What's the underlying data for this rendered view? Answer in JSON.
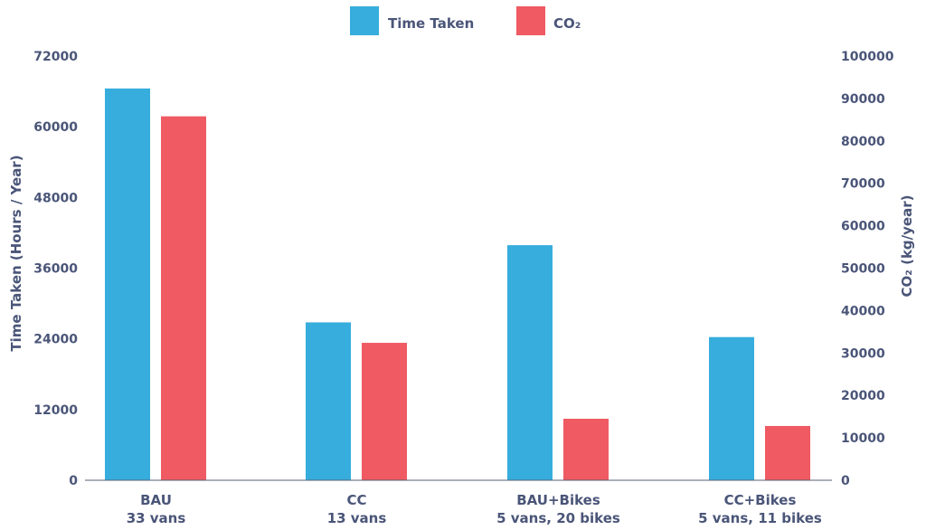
{
  "chart_data": {
    "type": "bar",
    "categories": [
      {
        "line1": "BAU",
        "line2": "33 vans"
      },
      {
        "line1": "CC",
        "line2": "13 vans"
      },
      {
        "line1": "BAU+Bikes",
        "line2": "5 vans, 20 bikes"
      },
      {
        "line1": "CC+Bikes",
        "line2": "5 vans, 11 bikes"
      }
    ],
    "series": [
      {
        "name": "Time Taken",
        "axis": "left",
        "color": "#36ADDC",
        "values": [
          66500,
          26800,
          39900,
          24300
        ]
      },
      {
        "name": "CO₂",
        "axis": "right",
        "color": "#EF5A63",
        "values": [
          85800,
          32400,
          14500,
          12800
        ]
      }
    ],
    "left_axis": {
      "label": "Time Taken (Hours / Year)",
      "ylim": [
        0,
        72000
      ],
      "ticks": [
        "0",
        "12000",
        "24000",
        "36000",
        "48000",
        "60000",
        "72000"
      ]
    },
    "right_axis": {
      "label": "CO₂ (kg/year)",
      "ylim": [
        0,
        100000
      ],
      "ticks": [
        "0",
        "10000",
        "20000",
        "30000",
        "40000",
        "50000",
        "60000",
        "70000",
        "80000",
        "90000",
        "100000"
      ]
    },
    "grid": false,
    "legend": "top-center"
  }
}
